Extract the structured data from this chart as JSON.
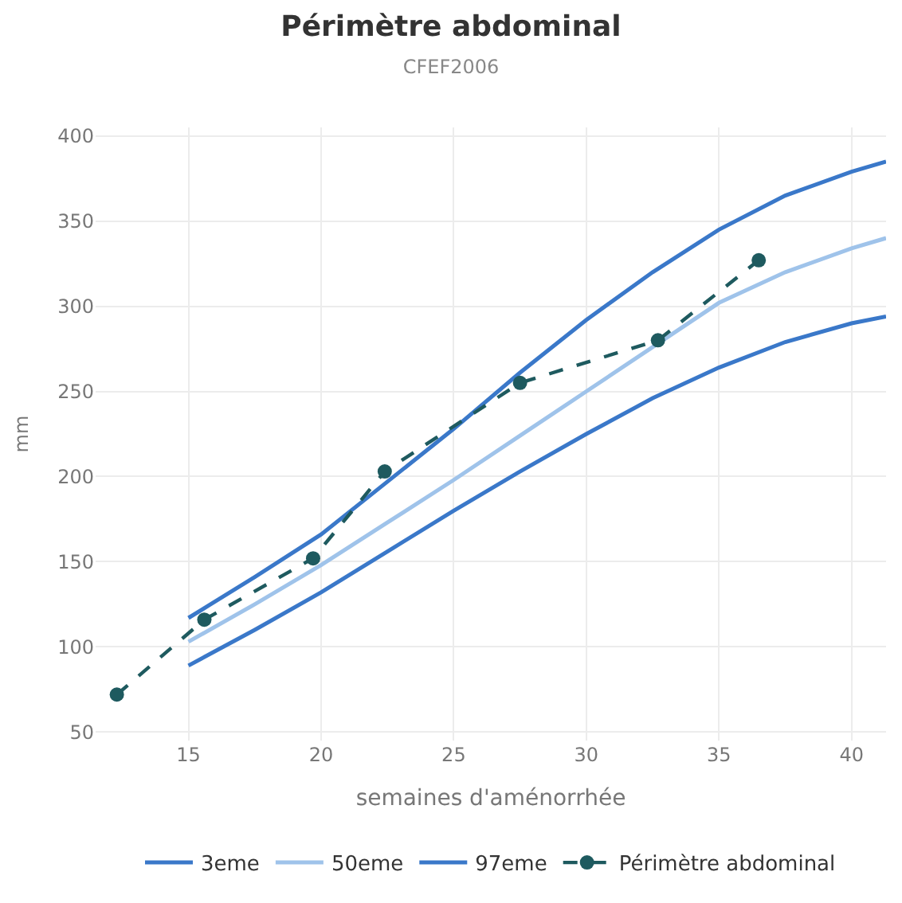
{
  "chart_data": {
    "type": "line",
    "title": "Périmètre abdominal",
    "subtitle": "CFEF2006",
    "xlabel": "semaines d'aménorrhée",
    "ylabel": "mm",
    "xlim": [
      11.5,
      41.3
    ],
    "ylim": [
      45,
      405
    ],
    "xticks": [
      15,
      20,
      25,
      30,
      35,
      40
    ],
    "yticks": [
      50,
      100,
      150,
      200,
      250,
      300,
      350,
      400
    ],
    "grid": true,
    "legend": "bottom",
    "series": [
      {
        "name": "3eme",
        "color": "#3a78c9",
        "marker": "none",
        "line_style": "solid",
        "x": [
          15,
          17.5,
          20,
          22.5,
          25,
          27.5,
          30,
          32.5,
          35,
          37.5,
          40,
          41.3
        ],
        "values": [
          89,
          110,
          132,
          156,
          180,
          203,
          225,
          246,
          264,
          279,
          290,
          294
        ]
      },
      {
        "name": "50eme",
        "color": "#9fc3ea",
        "marker": "none",
        "line_style": "solid",
        "x": [
          15,
          17.5,
          20,
          22.5,
          25,
          27.5,
          30,
          32.5,
          35,
          37.5,
          40,
          41.3
        ],
        "values": [
          103,
          125,
          148,
          173,
          198,
          224,
          250,
          276,
          302,
          320,
          334,
          340
        ]
      },
      {
        "name": "97eme",
        "color": "#3a78c9",
        "marker": "none",
        "line_style": "solid",
        "x": [
          15,
          17.5,
          20,
          22.5,
          25,
          27.5,
          30,
          32.5,
          35,
          37.5,
          40,
          41.3
        ],
        "values": [
          117,
          141,
          166,
          197,
          228,
          261,
          292,
          320,
          345,
          365,
          379,
          385
        ]
      },
      {
        "name": "Périmètre abdominal",
        "color": "#1e5a5f",
        "marker": "circle",
        "line_style": "dashed",
        "x": [
          12.3,
          15.6,
          19.7,
          22.4,
          27.5,
          32.7,
          36.5
        ],
        "values": [
          72,
          116,
          152,
          203,
          255,
          280,
          327
        ]
      }
    ]
  }
}
